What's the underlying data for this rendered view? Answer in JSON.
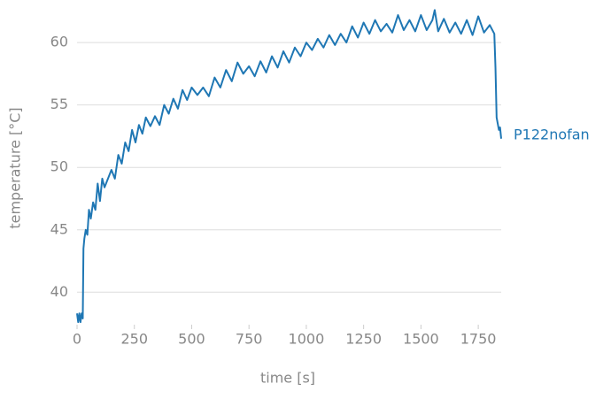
{
  "chart_data": {
    "type": "line",
    "xlabel": "time [s]",
    "ylabel": "temperature [°C]",
    "x": [
      0,
      5,
      10,
      15,
      20,
      25,
      28,
      32,
      38,
      45,
      52,
      60,
      70,
      80,
      90,
      100,
      110,
      120,
      135,
      150,
      165,
      180,
      195,
      210,
      225,
      240,
      255,
      270,
      285,
      300,
      320,
      340,
      360,
      380,
      400,
      420,
      440,
      460,
      480,
      500,
      525,
      550,
      575,
      600,
      625,
      650,
      675,
      700,
      725,
      750,
      775,
      800,
      825,
      850,
      875,
      900,
      925,
      950,
      975,
      1000,
      1025,
      1050,
      1075,
      1100,
      1125,
      1150,
      1175,
      1200,
      1225,
      1250,
      1275,
      1300,
      1325,
      1350,
      1375,
      1400,
      1425,
      1450,
      1475,
      1500,
      1525,
      1550,
      1560,
      1575,
      1600,
      1625,
      1650,
      1675,
      1700,
      1725,
      1750,
      1775,
      1800,
      1820,
      1825,
      1830,
      1835,
      1840,
      1845,
      1850
    ],
    "series": [
      {
        "name": "P122nofan",
        "color": "#1f77b4",
        "values": [
          38.3,
          37.6,
          38.3,
          37.6,
          38.3,
          37.9,
          43.5,
          44.3,
          45.0,
          44.6,
          46.6,
          45.9,
          47.2,
          46.6,
          48.7,
          47.3,
          49.1,
          48.4,
          49.1,
          49.8,
          49.1,
          51.0,
          50.3,
          52.0,
          51.3,
          53.0,
          52.0,
          53.4,
          52.7,
          54.0,
          53.3,
          54.1,
          53.4,
          55.0,
          54.3,
          55.5,
          54.7,
          56.2,
          55.4,
          56.4,
          55.8,
          56.4,
          55.7,
          57.2,
          56.4,
          57.8,
          56.9,
          58.4,
          57.5,
          58.1,
          57.3,
          58.5,
          57.6,
          58.9,
          58.0,
          59.3,
          58.4,
          59.6,
          58.9,
          60.0,
          59.4,
          60.3,
          59.6,
          60.6,
          59.8,
          60.7,
          60.0,
          61.3,
          60.4,
          61.6,
          60.7,
          61.8,
          60.9,
          61.5,
          60.8,
          62.2,
          61.0,
          61.8,
          60.9,
          62.2,
          61.0,
          61.8,
          62.6,
          60.9,
          61.9,
          60.8,
          61.6,
          60.7,
          61.8,
          60.6,
          62.1,
          60.8,
          61.4,
          60.7,
          58.0,
          54.0,
          53.5,
          53.0,
          53.2,
          52.3
        ]
      }
    ],
    "xlim": [
      0,
      1850
    ],
    "xticks": [
      0,
      250,
      500,
      750,
      1000,
      1250,
      1500,
      1750
    ],
    "ylim": [
      37.4,
      62.7
    ],
    "yticks": [
      40,
      45,
      50,
      55,
      60
    ],
    "grid": true
  }
}
